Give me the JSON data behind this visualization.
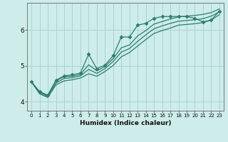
{
  "xlabel": "Humidex (Indice chaleur)",
  "background_color": "#cdecea",
  "grid_color": "#aad4d0",
  "line_color": "#2d7d6e",
  "x_values": [
    0,
    1,
    2,
    3,
    4,
    5,
    6,
    7,
    8,
    9,
    10,
    11,
    12,
    13,
    14,
    15,
    16,
    17,
    18,
    19,
    20,
    21,
    22,
    23
  ],
  "line1_y": [
    4.55,
    4.28,
    4.18,
    4.6,
    4.72,
    4.75,
    4.8,
    5.32,
    4.92,
    5.02,
    5.28,
    5.8,
    5.8,
    6.13,
    6.18,
    6.32,
    6.37,
    6.37,
    6.37,
    6.37,
    6.32,
    6.22,
    6.27,
    6.52
  ],
  "line2_y": [
    4.55,
    4.28,
    4.18,
    4.58,
    4.7,
    4.71,
    4.76,
    5.03,
    4.86,
    4.98,
    5.2,
    5.5,
    5.58,
    5.83,
    5.98,
    6.16,
    6.23,
    6.3,
    6.36,
    6.38,
    6.4,
    6.43,
    6.48,
    6.58
  ],
  "line3_y": [
    4.55,
    4.25,
    4.15,
    4.52,
    4.65,
    4.67,
    4.72,
    4.9,
    4.79,
    4.92,
    5.12,
    5.38,
    5.48,
    5.68,
    5.86,
    6.03,
    6.11,
    6.18,
    6.24,
    6.26,
    6.28,
    6.31,
    6.38,
    6.5
  ],
  "line4_y": [
    4.55,
    4.22,
    4.12,
    4.47,
    4.58,
    4.61,
    4.66,
    4.78,
    4.71,
    4.84,
    5.01,
    5.25,
    5.37,
    5.55,
    5.73,
    5.9,
    5.98,
    6.05,
    6.13,
    6.15,
    6.17,
    6.2,
    6.27,
    6.42
  ],
  "ylim": [
    3.75,
    6.75
  ],
  "xlim": [
    -0.5,
    23.5
  ],
  "yticks": [
    4,
    5,
    6
  ],
  "xticks": [
    0,
    1,
    2,
    3,
    4,
    5,
    6,
    7,
    8,
    9,
    10,
    11,
    12,
    13,
    14,
    15,
    16,
    17,
    18,
    19,
    20,
    21,
    22,
    23
  ],
  "marker": "D",
  "markersize": 2.5,
  "linewidth": 0.9,
  "xlabel_fontsize": 6.5,
  "tick_fontsize_x": 5.0,
  "tick_fontsize_y": 6.5
}
